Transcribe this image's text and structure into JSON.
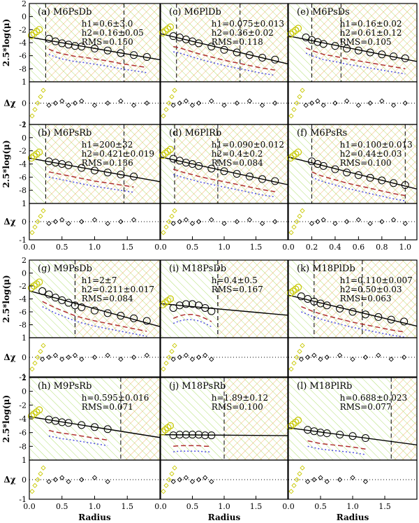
{
  "figure": {
    "xlabel": "Radius",
    "ylabel_top": "2.5*log(μ)",
    "ylabel_bottom": "Δχ",
    "colors": {
      "data_circles": "#000000",
      "excluded_circles": "#c8c800",
      "fit_line": "#000000",
      "model_dashed": "#b03030",
      "model_dotted": "#5050e0",
      "hatch_orange": "#f0a050",
      "hatch_green": "#b0e070"
    }
  },
  "chart_data": [
    {
      "type": "scatter",
      "panel": "a",
      "name": "M6PsDb",
      "stats": [
        "h1=0.6±3.0",
        "h2=0.16±0.05",
        "RMS=0.150"
      ],
      "xlim": [
        0,
        2
      ],
      "xticks": [],
      "x": [
        0.3,
        0.4,
        0.5,
        0.6,
        0.7,
        0.8,
        1.0,
        1.2,
        1.4,
        1.6,
        1.8
      ],
      "y": [
        -3.4,
        -3.8,
        -4.1,
        -4.3,
        -4.5,
        -4.6,
        -4.9,
        -5.2,
        -5.6,
        -5.9,
        -6.2
      ],
      "dashes": [
        0.25,
        1.45
      ]
    },
    {
      "type": "scatter",
      "panel": "c",
      "name": "M6PlDb",
      "stats": [
        "h1=0.075±0.013",
        "h2=0.36±0.02",
        "RMS=0.118"
      ],
      "xlim": [
        0,
        2
      ],
      "xticks": [],
      "x": [
        0.2,
        0.3,
        0.4,
        0.5,
        0.6,
        0.8,
        1.0,
        1.2,
        1.4,
        1.6,
        1.8
      ],
      "y": [
        -3.0,
        -3.2,
        -3.5,
        -3.8,
        -4.1,
        -4.6,
        -5.1,
        -5.5,
        -5.9,
        -6.3,
        -6.6
      ],
      "dashes": [
        0.25,
        1.25
      ]
    },
    {
      "type": "scatter",
      "panel": "e",
      "name": "M6PsDs",
      "stats": [
        "h1=0.16±0.02",
        "h2=0.61±0.12",
        "RMS=0.105"
      ],
      "xlim": [
        0,
        1.1
      ],
      "xticks": [],
      "x": [
        0.15,
        0.2,
        0.25,
        0.3,
        0.4,
        0.5,
        0.6,
        0.7,
        0.8,
        0.9,
        1.0
      ],
      "y": [
        -3.2,
        -3.6,
        -3.9,
        -4.2,
        -4.5,
        -4.9,
        -5.2,
        -5.5,
        -5.8,
        -6.1,
        -6.4
      ],
      "dashes": [
        0.2,
        0.45
      ]
    },
    {
      "type": "scatter",
      "panel": "b",
      "name": "M6PsRb",
      "stats": [
        "h1=200±32",
        "h2=0.421±0.019",
        "RMS=0.136"
      ],
      "xlim": [
        0,
        2
      ],
      "xticks": [
        "0.0",
        "0.5",
        "1.0",
        "1.5"
      ],
      "x": [
        0.3,
        0.4,
        0.5,
        0.6,
        0.8,
        1.0,
        1.2,
        1.4,
        1.6
      ],
      "y": [
        -3.6,
        -3.8,
        -4.0,
        -4.2,
        -4.6,
        -5.0,
        -5.3,
        -5.6,
        -5.9
      ],
      "dashes": [
        0.25,
        1.45
      ]
    },
    {
      "type": "scatter",
      "panel": "d",
      "name": "M6PlRb",
      "stats": [
        "h1=0.090±0.012",
        "h2=0.4±0.2",
        "RMS=0.084"
      ],
      "xlim": [
        0,
        2
      ],
      "xticks": [
        "0.0",
        "0.5",
        "1.0",
        "1.5"
      ],
      "x": [
        0.2,
        0.3,
        0.4,
        0.5,
        0.6,
        0.8,
        1.0,
        1.2,
        1.4,
        1.6,
        1.8
      ],
      "y": [
        -3.2,
        -3.5,
        -3.8,
        -4.0,
        -4.3,
        -4.7,
        -5.1,
        -5.5,
        -5.9,
        -6.3,
        -6.6
      ],
      "dashes": [
        0.22,
        0.9
      ]
    },
    {
      "type": "scatter",
      "panel": "f",
      "name": "M6PsRs",
      "stats": [
        "h1=0.100±0.013",
        "h2=0.44±0.03",
        "RMS=0.100"
      ],
      "xlim": [
        0,
        1.1
      ],
      "xticks": [
        "0.0",
        "0.2",
        "0.4",
        "0.6",
        "0.8",
        "1.0"
      ],
      "x": [
        0.2,
        0.25,
        0.3,
        0.4,
        0.5,
        0.6,
        0.7,
        0.8,
        0.9,
        1.0
      ],
      "y": [
        -3.6,
        -4.0,
        -4.3,
        -4.8,
        -5.3,
        -5.7,
        -6.1,
        -6.5,
        -6.9,
        -7.2
      ],
      "dashes": [
        0.2,
        1.0
      ]
    },
    {
      "type": "scatter",
      "panel": "g",
      "name": "M9PsDb",
      "stats": [
        "h1=2±7",
        "h2=0.211±0.017",
        "RMS=0.084"
      ],
      "xlim": [
        0,
        2
      ],
      "xticks": [],
      "x": [
        0.2,
        0.3,
        0.4,
        0.5,
        0.6,
        0.7,
        0.8,
        1.0,
        1.2,
        1.4,
        1.6,
        1.8
      ],
      "y": [
        -2.8,
        -3.3,
        -3.8,
        -4.2,
        -4.6,
        -5.0,
        -5.3,
        -5.8,
        -6.2,
        -6.6,
        -7.0,
        -7.4
      ],
      "dashes": [
        0.7,
        0.7
      ]
    },
    {
      "type": "scatter",
      "panel": "i",
      "name": "M18PsDb",
      "stats": [
        "h=0.4±0.5",
        "RMS=0.167"
      ],
      "xlim": [
        0,
        2
      ],
      "xticks": [],
      "x": [
        0.2,
        0.3,
        0.4,
        0.5,
        0.6,
        0.7,
        0.8
      ],
      "y": [
        -5.4,
        -5.0,
        -4.8,
        -4.8,
        -5.0,
        -5.4,
        -5.9
      ],
      "dashes": [
        0.9,
        0.9
      ]
    },
    {
      "type": "scatter",
      "panel": "k",
      "name": "M18PlDb",
      "stats": [
        "h1=0.110±0.007",
        "h2=0.50±0.03",
        "RMS=0.063"
      ],
      "xlim": [
        0,
        2
      ],
      "xticks": [],
      "x": [
        0.2,
        0.3,
        0.4,
        0.5,
        0.6,
        0.8,
        1.0,
        1.2,
        1.4,
        1.6,
        1.8
      ],
      "y": [
        -3.6,
        -4.0,
        -4.4,
        -4.7,
        -5.0,
        -5.5,
        -6.0,
        -6.4,
        -6.8,
        -7.2,
        -7.5
      ],
      "dashes": [
        0.4,
        1.15
      ]
    },
    {
      "type": "scatter",
      "panel": "h",
      "name": "M9PsRb",
      "stats": [
        "h=0.595±0.016",
        "RMS=0.071"
      ],
      "xlim": [
        0,
        2
      ],
      "xticks": [
        "0.0",
        "0.5",
        "1.0",
        "1.5"
      ],
      "x": [
        0.3,
        0.4,
        0.5,
        0.6,
        0.8,
        1.0,
        1.2
      ],
      "y": [
        -4.1,
        -4.3,
        -4.5,
        -4.6,
        -4.9,
        -5.2,
        -5.5
      ],
      "dashes": [
        1.4
      ]
    },
    {
      "type": "scatter",
      "panel": "j",
      "name": "M18PsRb",
      "stats": [
        "h=1.89±0.12",
        "RMS=0.100"
      ],
      "xlim": [
        0,
        2
      ],
      "xticks": [
        "0.0",
        "0.5",
        "1.0",
        "1.5"
      ],
      "x": [
        0.2,
        0.3,
        0.4,
        0.5,
        0.6,
        0.7,
        0.8
      ],
      "y": [
        -6.4,
        -6.3,
        -6.3,
        -6.3,
        -6.3,
        -6.4,
        -6.4
      ],
      "dashes": [
        1.0
      ]
    },
    {
      "type": "scatter",
      "panel": "l",
      "name": "M18PlRb",
      "stats": [
        "h=0.688±0.023",
        "RMS=0.077"
      ],
      "xlim": [
        0,
        2
      ],
      "xticks": [
        "0.0",
        "0.5",
        "1.0",
        "1.5"
      ],
      "x": [
        0.3,
        0.4,
        0.5,
        0.6,
        0.8,
        1.0,
        1.2
      ],
      "y": [
        -5.6,
        -5.8,
        -6.0,
        -6.1,
        -6.3,
        -6.5,
        -6.8
      ],
      "dashes": [
        1.6
      ]
    }
  ],
  "axes": {
    "mu_ylim": [
      -10,
      2
    ],
    "mu_yticks": [
      "2",
      "0",
      "-2",
      "-4",
      "-6",
      "-8"
    ],
    "dchi_ylim": [
      -1,
      1
    ],
    "dchi_yticks": [
      "1",
      "0",
      "-1"
    ]
  }
}
